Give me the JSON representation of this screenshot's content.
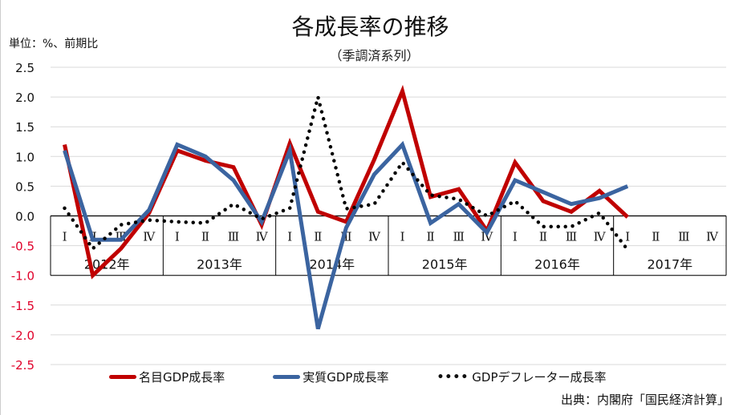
{
  "chart_data": {
    "type": "line",
    "title": "各成長率の推移",
    "subtitle": "（季調済系列）",
    "ylabel": "単位：%、前期比",
    "source": "出典：内閣府「国民経済計算」",
    "ylim": [
      -2.5,
      2.5
    ],
    "yticks": [
      "2.5",
      "2.0",
      "1.5",
      "1.0",
      "0.5",
      "0.0",
      "-0.5",
      "-1.0",
      "-1.5",
      "-2.0",
      "-2.5"
    ],
    "ytick_values": [
      2.5,
      2.0,
      1.5,
      1.0,
      0.5,
      0.0,
      -0.5,
      -1.0,
      -1.5,
      -2.0,
      -2.5
    ],
    "grid": true,
    "legend_position": "bottom",
    "years": [
      "2012年",
      "2013年",
      "2014年",
      "2015年",
      "2016年",
      "2017年"
    ],
    "quarters": [
      "Ⅰ",
      "Ⅱ",
      "Ⅲ",
      "Ⅳ"
    ],
    "series": [
      {
        "name": "名目GDP成長率",
        "color": "#c00000",
        "style": "solid",
        "values": [
          1.2,
          -1.0,
          -0.55,
          0.05,
          1.1,
          0.93,
          0.82,
          -0.15,
          1.22,
          0.07,
          -0.1,
          0.95,
          2.1,
          0.32,
          0.45,
          -0.25,
          0.9,
          0.25,
          0.07,
          0.42,
          -0.02,
          null,
          null,
          null
        ]
      },
      {
        "name": "実質GDP成長率",
        "color": "#3b64a0",
        "style": "solid",
        "values": [
          1.1,
          -0.4,
          -0.4,
          0.1,
          1.2,
          1.0,
          0.6,
          -0.1,
          1.1,
          -1.9,
          -0.2,
          0.7,
          1.2,
          -0.12,
          0.2,
          -0.28,
          0.6,
          0.4,
          0.2,
          0.3,
          0.5,
          null,
          null,
          null
        ]
      },
      {
        "name": "GDPデフレーター成長率",
        "color": "#000000",
        "style": "dotted",
        "values": [
          0.13,
          -0.55,
          -0.15,
          -0.07,
          -0.1,
          -0.12,
          0.2,
          -0.05,
          0.13,
          2.0,
          0.12,
          0.2,
          0.9,
          0.35,
          0.28,
          0.0,
          0.25,
          -0.18,
          -0.18,
          0.05,
          -0.57,
          null,
          null,
          null
        ]
      }
    ],
    "negative_tick_color": "#e0002a"
  }
}
